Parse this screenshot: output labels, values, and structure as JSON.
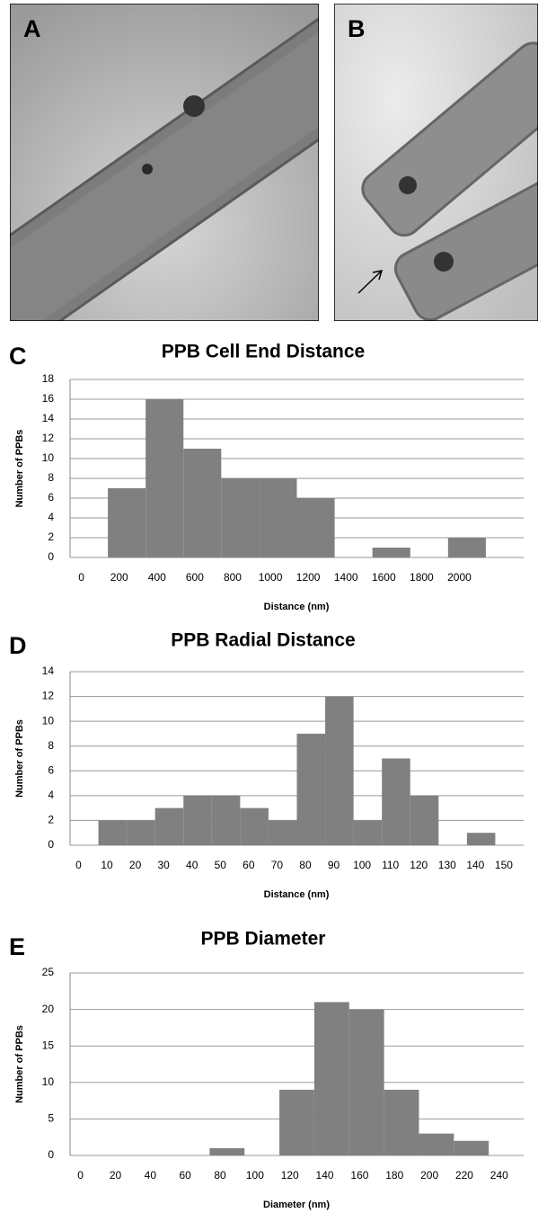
{
  "images": [
    {
      "label": "A"
    },
    {
      "label": "B"
    }
  ],
  "chart_data": [
    {
      "type": "bar",
      "panel": "C",
      "title": "PPB Cell End Distance",
      "x_label": "Distance (nm)",
      "y_label": "Number of PPBs",
      "categories": [
        "0",
        "200",
        "400",
        "600",
        "800",
        "1000",
        "1200",
        "1400",
        "1600",
        "1800",
        "2000",
        null
      ],
      "values": [
        0,
        7,
        16,
        11,
        8,
        8,
        6,
        0,
        1,
        0,
        2,
        null
      ],
      "color": "#808080",
      "ylim": [
        0,
        18
      ],
      "yticks": [
        0,
        2,
        4,
        6,
        8,
        10,
        12,
        14,
        16,
        18
      ],
      "grid": true
    },
    {
      "type": "bar",
      "panel": "D",
      "title": "PPB Radial Distance",
      "x_label": "Distance (nm)",
      "y_label": "Number of PPBs",
      "categories": [
        "0",
        "10",
        "20",
        "30",
        "40",
        "50",
        "60",
        "70",
        "80",
        "90",
        "100",
        "110",
        "120",
        "130",
        "140",
        "150"
      ],
      "values": [
        0,
        2,
        2,
        3,
        4,
        4,
        3,
        2,
        9,
        12,
        2,
        7,
        4,
        0,
        1,
        0
      ],
      "color": "#808080",
      "ylim": [
        0,
        14
      ],
      "yticks": [
        0,
        2,
        4,
        6,
        8,
        10,
        12,
        14
      ],
      "grid": true
    },
    {
      "type": "bar",
      "panel": "E",
      "title": "PPB Diameter",
      "x_label": "Diameter (nm)",
      "y_label": "Number of PPBs",
      "categories": [
        "0",
        "20",
        "40",
        "60",
        "80",
        "100",
        "120",
        "140",
        "160",
        "180",
        "200",
        "220",
        "240"
      ],
      "values": [
        0,
        0,
        0,
        0,
        1,
        0,
        9,
        21,
        20,
        9,
        3,
        2,
        0
      ],
      "color": "#808080",
      "ylim": [
        0,
        25
      ],
      "yticks": [
        0,
        5,
        10,
        15,
        20,
        25
      ],
      "grid": true
    }
  ]
}
